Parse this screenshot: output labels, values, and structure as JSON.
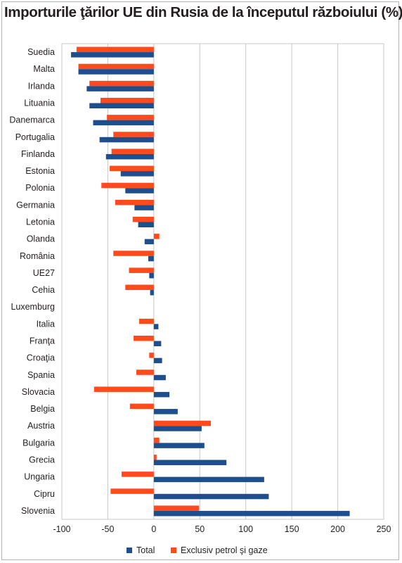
{
  "chart_data": {
    "type": "bar",
    "orientation": "horizontal",
    "title": "Importurile ţărilor UE din Rusia de la începutul războiului (%)",
    "categories": [
      "Suedia",
      "Malta",
      "Irlanda",
      "Lituania",
      "Danemarca",
      "Portugalia",
      "Finlanda",
      "Estonia",
      "Polonia",
      "Germania",
      "Letonia",
      "Olanda",
      "România",
      "UE27",
      "Cehia",
      "Luxemburg",
      "Italia",
      "Franţa",
      "Croaţia",
      "Spania",
      "Slovacia",
      "Belgia",
      "Austria",
      "Bulgaria",
      "Grecia",
      "Ungaria",
      "Cipru",
      "Slovenia"
    ],
    "series": [
      {
        "name": "Total",
        "color": "#1f4e8c",
        "values": [
          -90,
          -82,
          -73,
          -70,
          -66,
          -59,
          -52,
          -36,
          -31,
          -21,
          -17,
          -10,
          -6,
          -5,
          -4,
          0,
          5,
          8,
          9,
          13,
          17,
          26,
          52,
          55,
          79,
          120,
          125,
          213
        ]
      },
      {
        "name": "Exclusiv petrol şi gaze",
        "color": "#ff4a1c",
        "values": [
          -84,
          -82,
          -70,
          -58,
          -51,
          -44,
          -46,
          -48,
          -57,
          -42,
          -23,
          6,
          -44,
          -27,
          -31,
          0,
          -16,
          -22,
          -5,
          -19,
          -65,
          -26,
          62,
          6,
          3,
          -35,
          -47,
          49
        ]
      }
    ],
    "xlim": [
      -100,
      250
    ],
    "xticks": [
      -100,
      -50,
      0,
      50,
      100,
      150,
      200,
      250
    ],
    "grid": "vertical",
    "legend_position": "bottom"
  }
}
